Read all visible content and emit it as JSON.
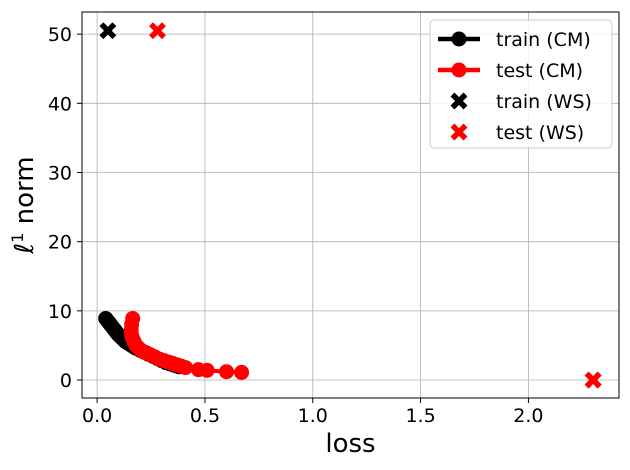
{
  "chart_data": {
    "type": "scatter",
    "title": "",
    "xlabel": "loss",
    "ylabel_main": "ℓ",
    "ylabel_sup": "1",
    "ylabel_rest": " norm",
    "xlim": [
      -0.07,
      2.42
    ],
    "ylim": [
      -2.6,
      53.2
    ],
    "xticks": [
      0.0,
      0.5,
      1.0,
      1.5,
      2.0
    ],
    "xtick_labels": [
      "0.0",
      "0.5",
      "1.0",
      "1.5",
      "2.0"
    ],
    "yticks": [
      0,
      10,
      20,
      30,
      40,
      50
    ],
    "ytick_labels": [
      "0",
      "10",
      "20",
      "30",
      "40",
      "50"
    ],
    "grid": true,
    "legend_position": "top-right",
    "series": [
      {
        "name": "train (CM)",
        "style": "line-marker",
        "color": "#000000",
        "x": [
          0.04,
          0.045,
          0.05,
          0.055,
          0.06,
          0.065,
          0.07,
          0.075,
          0.08,
          0.085,
          0.09,
          0.095,
          0.1,
          0.11,
          0.12,
          0.13,
          0.14,
          0.15,
          0.16,
          0.17,
          0.18,
          0.2,
          0.22,
          0.24,
          0.26,
          0.28,
          0.3,
          0.32,
          0.34,
          0.36,
          0.38
        ],
        "y": [
          8.9,
          8.7,
          8.5,
          8.3,
          8.1,
          7.9,
          7.7,
          7.5,
          7.3,
          7.1,
          6.9,
          6.7,
          6.5,
          6.2,
          5.9,
          5.6,
          5.4,
          5.2,
          5.0,
          4.8,
          4.6,
          4.3,
          4.0,
          3.7,
          3.4,
          3.1,
          2.8,
          2.5,
          2.3,
          2.1,
          1.9
        ]
      },
      {
        "name": "test (CM)",
        "style": "line-marker",
        "color": "#ff0000",
        "x": [
          0.165,
          0.16,
          0.158,
          0.16,
          0.165,
          0.172,
          0.18,
          0.19,
          0.2,
          0.215,
          0.23,
          0.25,
          0.27,
          0.29,
          0.31,
          0.33,
          0.35,
          0.37,
          0.39,
          0.41,
          0.47,
          0.51,
          0.6,
          0.67
        ],
        "y": [
          8.9,
          8.0,
          7.2,
          6.5,
          6.0,
          5.5,
          5.0,
          4.7,
          4.4,
          4.1,
          3.9,
          3.6,
          3.3,
          3.0,
          2.8,
          2.6,
          2.4,
          2.2,
          2.0,
          1.8,
          1.5,
          1.4,
          1.2,
          1.1
        ]
      },
      {
        "name": "train (WS)",
        "style": "x-marker",
        "color": "#000000",
        "x": [
          0.05,
          2.3
        ],
        "y": [
          50.5,
          0.0
        ]
      },
      {
        "name": "test (WS)",
        "style": "x-marker",
        "color": "#ff0000",
        "x": [
          0.28,
          2.3
        ],
        "y": [
          50.5,
          0.0
        ]
      }
    ]
  }
}
